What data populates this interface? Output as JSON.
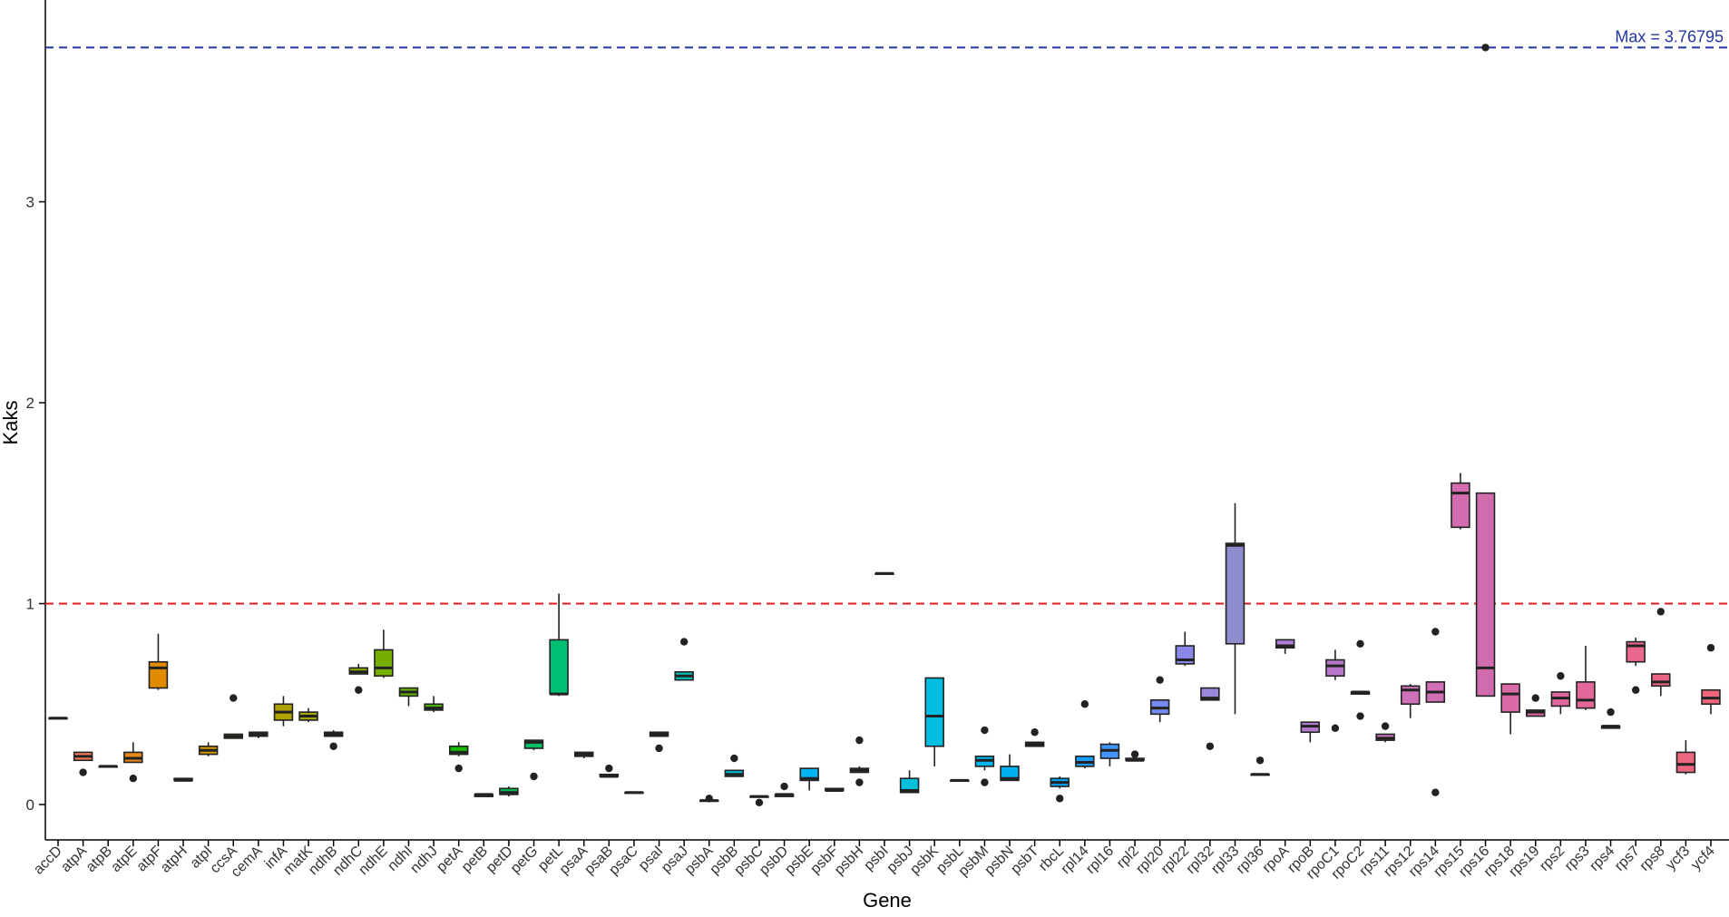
{
  "chart_data": {
    "type": "boxplot",
    "title": "",
    "xlabel": "Gene",
    "ylabel": "Kaks",
    "ylim": [
      -0.15,
      3.95
    ],
    "yticks": [
      0,
      1,
      2,
      3
    ],
    "ytick_labels": [
      "0",
      "1",
      "2",
      "3"
    ],
    "grid": false,
    "legend": "none",
    "reference_lines": [
      {
        "value": 1,
        "color": "#e41a1c",
        "style": "dashed"
      },
      {
        "value": 3.76795,
        "color": "#2336a0",
        "style": "dashed",
        "label": "Max = 3.76795"
      }
    ],
    "genes": [
      {
        "name": "accD",
        "color": "#F8766D",
        "q1": 0.43,
        "median": 0.43,
        "q3": 0.43,
        "whisker_low": 0.43,
        "whisker_high": 0.43,
        "outliers": []
      },
      {
        "name": "atpA",
        "color": "#F37B59",
        "q1": 0.22,
        "median": 0.24,
        "q3": 0.26,
        "whisker_low": 0.22,
        "whisker_high": 0.26,
        "outliers": [
          0.16
        ]
      },
      {
        "name": "atpB",
        "color": "#ED8141",
        "q1": 0.19,
        "median": 0.19,
        "q3": 0.19,
        "whisker_low": 0.19,
        "whisker_high": 0.19,
        "outliers": []
      },
      {
        "name": "atpE",
        "color": "#E7861B",
        "q1": 0.21,
        "median": 0.23,
        "q3": 0.26,
        "whisker_low": 0.21,
        "whisker_high": 0.31,
        "outliers": [
          0.13
        ]
      },
      {
        "name": "atpF",
        "color": "#E08B00",
        "q1": 0.58,
        "median": 0.68,
        "q3": 0.71,
        "whisker_low": 0.57,
        "whisker_high": 0.85,
        "outliers": []
      },
      {
        "name": "atpH",
        "color": "#D89000",
        "q1": 0.12,
        "median": 0.12,
        "q3": 0.13,
        "whisker_low": 0.12,
        "whisker_high": 0.13,
        "outliers": []
      },
      {
        "name": "atpI",
        "color": "#CF9400",
        "q1": 0.25,
        "median": 0.27,
        "q3": 0.29,
        "whisker_low": 0.24,
        "whisker_high": 0.31,
        "outliers": []
      },
      {
        "name": "ccsA",
        "color": "#C59900",
        "q1": 0.33,
        "median": 0.34,
        "q3": 0.35,
        "whisker_low": 0.33,
        "whisker_high": 0.35,
        "outliers": [
          0.53
        ]
      },
      {
        "name": "cemA",
        "color": "#BB9D00",
        "q1": 0.34,
        "median": 0.35,
        "q3": 0.36,
        "whisker_low": 0.33,
        "whisker_high": 0.36,
        "outliers": []
      },
      {
        "name": "infA",
        "color": "#AFA100",
        "q1": 0.42,
        "median": 0.46,
        "q3": 0.5,
        "whisker_low": 0.39,
        "whisker_high": 0.54,
        "outliers": []
      },
      {
        "name": "matK",
        "color": "#A3A500",
        "q1": 0.42,
        "median": 0.44,
        "q3": 0.46,
        "whisker_low": 0.41,
        "whisker_high": 0.48,
        "outliers": []
      },
      {
        "name": "ndhB",
        "color": "#96A900",
        "q1": 0.34,
        "median": 0.35,
        "q3": 0.36,
        "whisker_low": 0.34,
        "whisker_high": 0.37,
        "outliers": [
          0.29
        ]
      },
      {
        "name": "ndhC",
        "color": "#87AC00",
        "q1": 0.65,
        "median": 0.66,
        "q3": 0.68,
        "whisker_low": 0.65,
        "whisker_high": 0.7,
        "outliers": [
          0.57
        ]
      },
      {
        "name": "ndhE",
        "color": "#76AF00",
        "q1": 0.64,
        "median": 0.68,
        "q3": 0.77,
        "whisker_low": 0.63,
        "whisker_high": 0.87,
        "outliers": []
      },
      {
        "name": "ndhI",
        "color": "#62B200",
        "q1": 0.54,
        "median": 0.56,
        "q3": 0.58,
        "whisker_low": 0.49,
        "whisker_high": 0.58,
        "outliers": []
      },
      {
        "name": "ndhJ",
        "color": "#48B500",
        "q1": 0.47,
        "median": 0.48,
        "q3": 0.5,
        "whisker_low": 0.46,
        "whisker_high": 0.54,
        "outliers": []
      },
      {
        "name": "petA",
        "color": "#17B700",
        "q1": 0.25,
        "median": 0.26,
        "q3": 0.29,
        "whisker_low": 0.24,
        "whisker_high": 0.31,
        "outliers": [
          0.18
        ]
      },
      {
        "name": "petB",
        "color": "#00BA38",
        "q1": 0.04,
        "median": 0.05,
        "q3": 0.05,
        "whisker_low": 0.04,
        "whisker_high": 0.05,
        "outliers": []
      },
      {
        "name": "petD",
        "color": "#00BC50",
        "q1": 0.05,
        "median": 0.06,
        "q3": 0.08,
        "whisker_low": 0.04,
        "whisker_high": 0.09,
        "outliers": []
      },
      {
        "name": "petG",
        "color": "#00BE63",
        "q1": 0.28,
        "median": 0.31,
        "q3": 0.32,
        "whisker_low": 0.27,
        "whisker_high": 0.32,
        "outliers": [
          0.14
        ]
      },
      {
        "name": "petL",
        "color": "#00BF74",
        "q1": 0.55,
        "median": 0.55,
        "q3": 0.82,
        "whisker_low": 0.54,
        "whisker_high": 1.05,
        "outliers": []
      },
      {
        "name": "psaA",
        "color": "#00C084",
        "q1": 0.24,
        "median": 0.25,
        "q3": 0.26,
        "whisker_low": 0.23,
        "whisker_high": 0.26,
        "outliers": []
      },
      {
        "name": "psaB",
        "color": "#00C193",
        "q1": 0.14,
        "median": 0.14,
        "q3": 0.15,
        "whisker_low": 0.14,
        "whisker_high": 0.15,
        "outliers": [
          0.18
        ]
      },
      {
        "name": "psaC",
        "color": "#00C1A1",
        "q1": 0.06,
        "median": 0.06,
        "q3": 0.06,
        "whisker_low": 0.06,
        "whisker_high": 0.06,
        "outliers": []
      },
      {
        "name": "psaI",
        "color": "#00C1AE",
        "q1": 0.34,
        "median": 0.35,
        "q3": 0.36,
        "whisker_low": 0.34,
        "whisker_high": 0.36,
        "outliers": [
          0.28
        ]
      },
      {
        "name": "psaJ",
        "color": "#00C0BB",
        "q1": 0.62,
        "median": 0.64,
        "q3": 0.66,
        "whisker_low": 0.62,
        "whisker_high": 0.66,
        "outliers": [
          0.81
        ]
      },
      {
        "name": "psbA",
        "color": "#00BEC7",
        "q1": 0.02,
        "median": 0.02,
        "q3": 0.02,
        "whisker_low": 0.02,
        "whisker_high": 0.02,
        "outliers": [
          0.03
        ]
      },
      {
        "name": "psbB",
        "color": "#00BCD3",
        "q1": 0.14,
        "median": 0.15,
        "q3": 0.17,
        "whisker_low": 0.14,
        "whisker_high": 0.17,
        "outliers": [
          0.23
        ]
      },
      {
        "name": "psbC",
        "color": "#00BADE",
        "q1": 0.04,
        "median": 0.04,
        "q3": 0.04,
        "whisker_low": 0.04,
        "whisker_high": 0.04,
        "outliers": [
          0.01
        ]
      },
      {
        "name": "psbD",
        "color": "#00B7E8",
        "q1": 0.04,
        "median": 0.05,
        "q3": 0.05,
        "whisker_low": 0.04,
        "whisker_high": 0.05,
        "outliers": [
          0.09
        ]
      },
      {
        "name": "psbE",
        "color": "#00B3F2",
        "q1": 0.12,
        "median": 0.13,
        "q3": 0.18,
        "whisker_low": 0.07,
        "whisker_high": 0.18,
        "outliers": []
      },
      {
        "name": "psbF",
        "color": "#00AFFA",
        "q1": 0.07,
        "median": 0.07,
        "q3": 0.08,
        "whisker_low": 0.07,
        "whisker_high": 0.08,
        "outliers": []
      },
      {
        "name": "psbH",
        "color": "#00AAFF",
        "q1": 0.16,
        "median": 0.17,
        "q3": 0.18,
        "whisker_low": 0.16,
        "whisker_high": 0.19,
        "outliers": [
          0.11,
          0.32
        ]
      },
      {
        "name": "psbI",
        "color": "#00A5FF",
        "q1": 1.15,
        "median": 1.15,
        "q3": 1.15,
        "whisker_low": 1.15,
        "whisker_high": 1.15,
        "outliers": []
      },
      {
        "name": "psbJ",
        "color": "#00C0DA",
        "q1": 0.06,
        "median": 0.07,
        "q3": 0.13,
        "whisker_low": 0.06,
        "whisker_high": 0.17,
        "outliers": []
      },
      {
        "name": "psbK",
        "color": "#00BDE2",
        "q1": 0.29,
        "median": 0.44,
        "q3": 0.63,
        "whisker_low": 0.19,
        "whisker_high": 0.63,
        "outliers": []
      },
      {
        "name": "psbL",
        "color": "#00B9E6",
        "q1": 0.12,
        "median": 0.12,
        "q3": 0.12,
        "whisker_low": 0.12,
        "whisker_high": 0.12,
        "outliers": []
      },
      {
        "name": "psbM",
        "color": "#00B5EC",
        "q1": 0.19,
        "median": 0.22,
        "q3": 0.24,
        "whisker_low": 0.17,
        "whisker_high": 0.24,
        "outliers": [
          0.11,
          0.37
        ]
      },
      {
        "name": "psbN",
        "color": "#00B0F0",
        "q1": 0.12,
        "median": 0.13,
        "q3": 0.19,
        "whisker_low": 0.12,
        "whisker_high": 0.25,
        "outliers": []
      },
      {
        "name": "psbT",
        "color": "#00AAF4",
        "q1": 0.29,
        "median": 0.3,
        "q3": 0.31,
        "whisker_low": 0.29,
        "whisker_high": 0.31,
        "outliers": [
          0.36
        ]
      },
      {
        "name": "rbcL",
        "color": "#00A3F8",
        "q1": 0.09,
        "median": 0.11,
        "q3": 0.13,
        "whisker_low": 0.08,
        "whisker_high": 0.14,
        "outliers": [
          0.03
        ]
      },
      {
        "name": "rpl14",
        "color": "#1C9CF9",
        "q1": 0.19,
        "median": 0.21,
        "q3": 0.24,
        "whisker_low": 0.18,
        "whisker_high": 0.24,
        "outliers": [
          0.5
        ]
      },
      {
        "name": "rpl16",
        "color": "#4295F7",
        "q1": 0.23,
        "median": 0.27,
        "q3": 0.3,
        "whisker_low": 0.19,
        "whisker_high": 0.31,
        "outliers": []
      },
      {
        "name": "rpl2",
        "color": "#5D8DF2",
        "q1": 0.22,
        "median": 0.22,
        "q3": 0.23,
        "whisker_low": 0.22,
        "whisker_high": 0.23,
        "outliers": [
          0.25
        ]
      },
      {
        "name": "rpl20",
        "color": "#7589EF",
        "q1": 0.45,
        "median": 0.48,
        "q3": 0.52,
        "whisker_low": 0.41,
        "whisker_high": 0.52,
        "outliers": [
          0.62
        ]
      },
      {
        "name": "rpl22",
        "color": "#8A86E6",
        "q1": 0.7,
        "median": 0.72,
        "q3": 0.79,
        "whisker_low": 0.69,
        "whisker_high": 0.86,
        "outliers": []
      },
      {
        "name": "rpl32",
        "color": "#9A86DB",
        "q1": 0.52,
        "median": 0.53,
        "q3": 0.58,
        "whisker_low": 0.52,
        "whisker_high": 0.58,
        "outliers": [
          0.29
        ]
      },
      {
        "name": "rpl33",
        "color": "#8E8CCC",
        "q1": 0.8,
        "median": 1.29,
        "q3": 1.3,
        "whisker_low": 0.45,
        "whisker_high": 1.5,
        "outliers": []
      },
      {
        "name": "rpl36",
        "color": "#A280D6",
        "q1": 0.15,
        "median": 0.15,
        "q3": 0.15,
        "whisker_low": 0.15,
        "whisker_high": 0.15,
        "outliers": [
          0.22
        ]
      },
      {
        "name": "rpoA",
        "color": "#AC7CD6",
        "q1": 0.78,
        "median": 0.79,
        "q3": 0.82,
        "whisker_low": 0.75,
        "whisker_high": 0.82,
        "outliers": []
      },
      {
        "name": "rpoB",
        "color": "#B37BCF",
        "q1": 0.36,
        "median": 0.39,
        "q3": 0.41,
        "whisker_low": 0.31,
        "whisker_high": 0.41,
        "outliers": []
      },
      {
        "name": "rpoC1",
        "color": "#BA78CA",
        "q1": 0.64,
        "median": 0.69,
        "q3": 0.72,
        "whisker_low": 0.62,
        "whisker_high": 0.77,
        "outliers": [
          0.38
        ]
      },
      {
        "name": "rpoC2",
        "color": "#C276C3",
        "q1": 0.55,
        "median": 0.56,
        "q3": 0.56,
        "whisker_low": 0.55,
        "whisker_high": 0.56,
        "outliers": [
          0.44,
          0.8
        ]
      },
      {
        "name": "rps11",
        "color": "#C874BB",
        "q1": 0.32,
        "median": 0.33,
        "q3": 0.35,
        "whisker_low": 0.31,
        "whisker_high": 0.35,
        "outliers": [
          0.39
        ]
      },
      {
        "name": "rps12",
        "color": "#CD72B8",
        "q1": 0.5,
        "median": 0.57,
        "q3": 0.59,
        "whisker_low": 0.43,
        "whisker_high": 0.6,
        "outliers": []
      },
      {
        "name": "rps14",
        "color": "#D16FB5",
        "q1": 0.51,
        "median": 0.56,
        "q3": 0.61,
        "whisker_low": 0.51,
        "whisker_high": 0.61,
        "outliers": [
          0.06,
          0.86
        ]
      },
      {
        "name": "rps15",
        "color": "#D46DAF",
        "q1": 1.38,
        "median": 1.55,
        "q3": 1.6,
        "whisker_low": 1.37,
        "whisker_high": 1.65,
        "outliers": []
      },
      {
        "name": "rps16",
        "color": "#D06CAE",
        "q1": 0.54,
        "median": 0.68,
        "q3": 1.55,
        "whisker_low": 0.54,
        "whisker_high": 1.55,
        "outliers": [
          3.76795
        ]
      },
      {
        "name": "rps18",
        "color": "#DA6AA8",
        "q1": 0.46,
        "median": 0.55,
        "q3": 0.6,
        "whisker_low": 0.35,
        "whisker_high": 0.6,
        "outliers": []
      },
      {
        "name": "rps19",
        "color": "#DD69A3",
        "q1": 0.44,
        "median": 0.46,
        "q3": 0.47,
        "whisker_low": 0.44,
        "whisker_high": 0.47,
        "outliers": [
          0.53
        ]
      },
      {
        "name": "rps2",
        "color": "#E0689E",
        "q1": 0.49,
        "median": 0.53,
        "q3": 0.56,
        "whisker_low": 0.45,
        "whisker_high": 0.56,
        "outliers": [
          0.64
        ]
      },
      {
        "name": "rps3",
        "color": "#E36798",
        "q1": 0.48,
        "median": 0.52,
        "q3": 0.61,
        "whisker_low": 0.47,
        "whisker_high": 0.79,
        "outliers": []
      },
      {
        "name": "rps4",
        "color": "#E66792",
        "q1": 0.38,
        "median": 0.39,
        "q3": 0.39,
        "whisker_low": 0.38,
        "whisker_high": 0.39,
        "outliers": [
          0.46
        ]
      },
      {
        "name": "rps7",
        "color": "#E9668C",
        "q1": 0.71,
        "median": 0.79,
        "q3": 0.81,
        "whisker_low": 0.69,
        "whisker_high": 0.83,
        "outliers": [
          0.57
        ]
      },
      {
        "name": "rps8",
        "color": "#EB6686",
        "q1": 0.59,
        "median": 0.61,
        "q3": 0.65,
        "whisker_low": 0.54,
        "whisker_high": 0.65,
        "outliers": [
          0.96
        ]
      },
      {
        "name": "ycf3",
        "color": "#ED6680",
        "q1": 0.16,
        "median": 0.2,
        "q3": 0.26,
        "whisker_low": 0.15,
        "whisker_high": 0.32,
        "outliers": []
      },
      {
        "name": "ycf4",
        "color": "#EF667A",
        "q1": 0.5,
        "median": 0.53,
        "q3": 0.57,
        "whisker_low": 0.45,
        "whisker_high": 0.57,
        "outliers": [
          0.78
        ]
      }
    ]
  }
}
